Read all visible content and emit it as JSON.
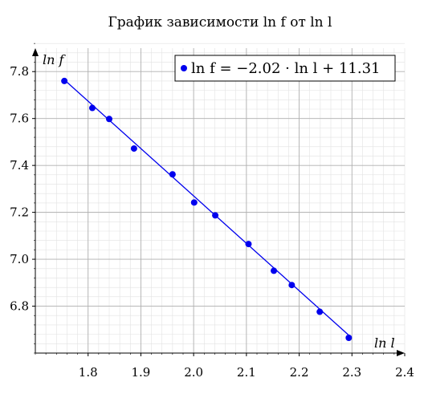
{
  "chart_data": {
    "type": "scatter",
    "title": "График зависимости ln f от ln l",
    "xlabel": "ln l",
    "ylabel": "ln f",
    "xlim": [
      1.7,
      2.4
    ],
    "ylim": [
      6.6,
      7.9
    ],
    "xticks": [
      "1.8",
      "1.9",
      "2.0",
      "2.1",
      "2.2",
      "2.3",
      "2.4"
    ],
    "yticks": [
      "6.8",
      "7.0",
      "7.2",
      "7.4",
      "7.6",
      "7.8"
    ],
    "grid": true,
    "legend_position": "top-right",
    "colors": {
      "series": "#0000ee",
      "major_grid": "#b0b0b0",
      "minor_grid": "#e2e2e2"
    },
    "series": [
      {
        "name": "ln f = −2.02 · ln l + 11.31",
        "x": [
          1.755,
          1.808,
          1.84,
          1.887,
          1.96,
          2.001,
          2.041,
          2.104,
          2.152,
          2.186,
          2.239,
          2.294
        ],
        "y": [
          7.76,
          7.645,
          7.598,
          7.472,
          7.362,
          7.242,
          7.187,
          7.065,
          6.951,
          6.89,
          6.776,
          6.665
        ]
      }
    ],
    "fit_line": {
      "slope": -2.02,
      "intercept": 11.31,
      "x_range": [
        1.755,
        2.294
      ]
    }
  }
}
